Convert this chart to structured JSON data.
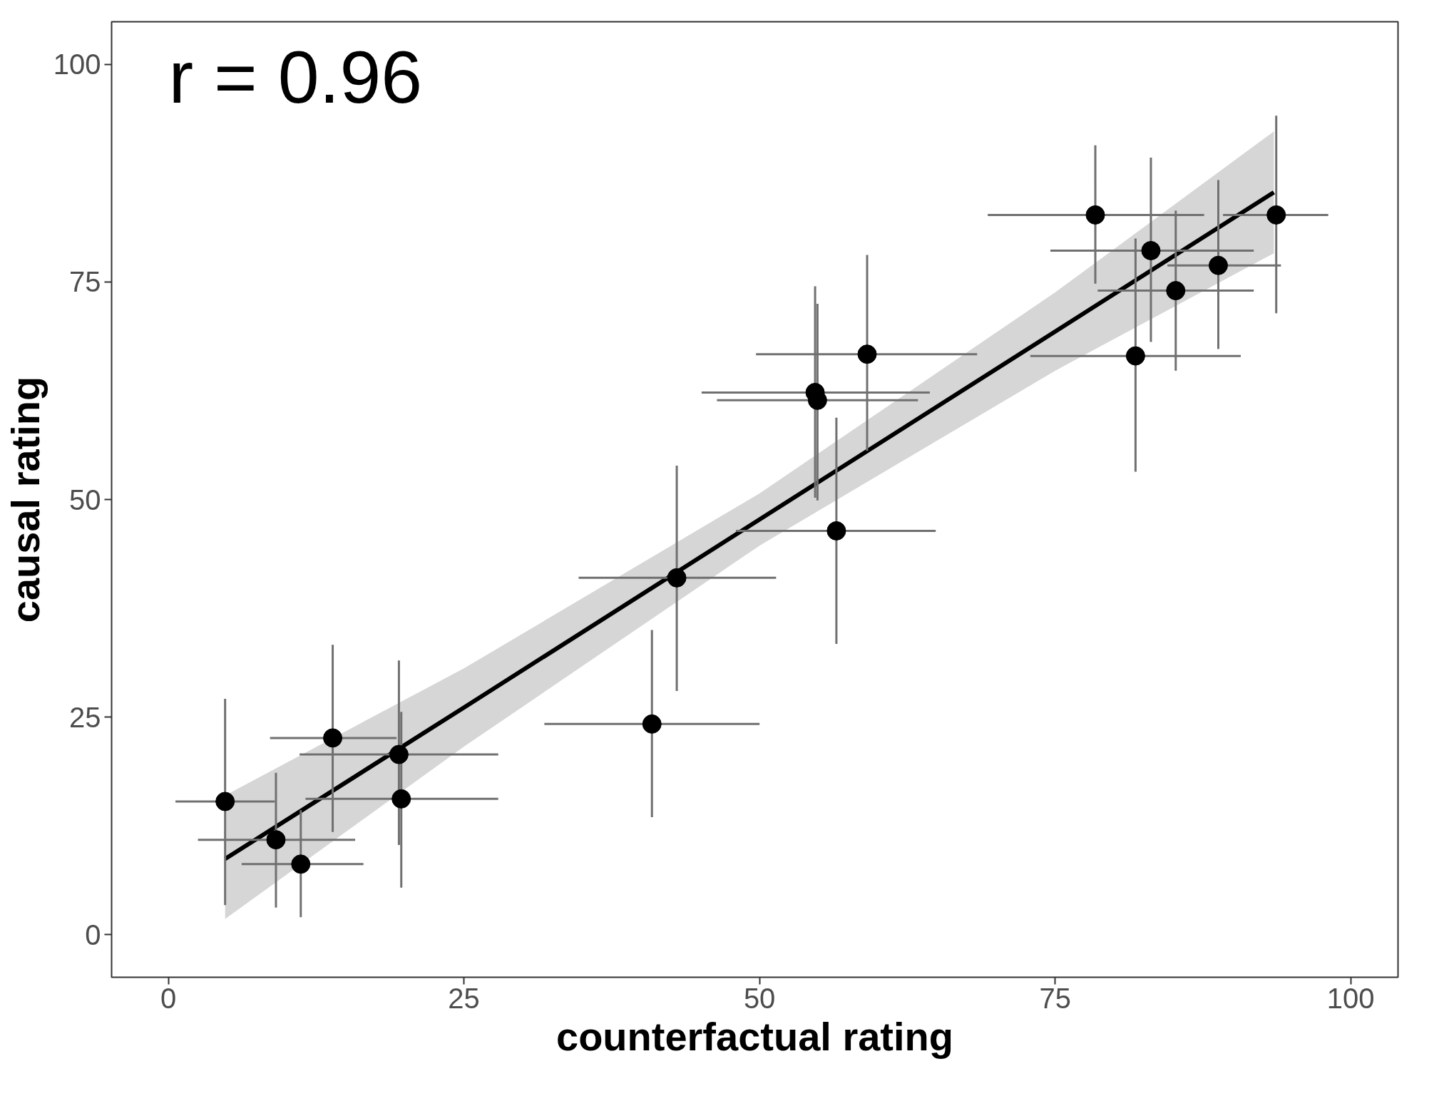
{
  "chart_data": {
    "type": "scatter",
    "xlabel": "counterfactual rating",
    "ylabel": "causal rating",
    "annotations": [
      "r = 0.96"
    ],
    "xlim": [
      -4.8,
      104.0
    ],
    "ylim": [
      -4.9,
      104.9
    ],
    "xticks": [
      0,
      25,
      50,
      75,
      100
    ],
    "yticks": [
      0,
      25,
      50,
      75,
      100
    ],
    "grid": false,
    "series": [
      {
        "marker": "circle",
        "color": "#000000",
        "x": [
          4.8,
          9.1,
          11.2,
          13.9,
          19.5,
          19.7,
          40.9,
          43.0,
          54.7,
          54.9,
          56.5,
          59.1,
          78.4,
          83.1,
          85.2,
          81.8,
          88.8,
          93.7
        ],
        "values": [
          15.3,
          10.9,
          8.1,
          22.6,
          20.7,
          15.6,
          24.2,
          41.0,
          62.3,
          61.4,
          46.4,
          66.7,
          82.7,
          78.6,
          74.0,
          66.5,
          76.9,
          82.7
        ],
        "errors": [
          [
            3.4,
            27.1
          ],
          [
            3.1,
            18.6
          ],
          [
            2.0,
            14.3
          ],
          [
            11.8,
            33.3
          ],
          [
            10.3,
            31.5
          ],
          [
            5.4,
            25.6
          ],
          [
            13.5,
            35.0
          ],
          [
            28.0,
            53.9
          ],
          [
            50.2,
            74.5
          ],
          [
            49.9,
            72.5
          ],
          [
            33.4,
            59.4
          ],
          [
            55.6,
            78.1
          ],
          [
            74.8,
            90.7
          ],
          [
            68.1,
            89.3
          ],
          [
            64.8,
            83.2
          ],
          [
            53.2,
            80.0
          ],
          [
            67.3,
            86.7
          ],
          [
            71.4,
            94.1
          ]
        ],
        "xerrors": [
          [
            0.6,
            9.0
          ],
          [
            2.5,
            15.8
          ],
          [
            6.2,
            16.5
          ],
          [
            8.6,
            19.3
          ],
          [
            11.1,
            27.9
          ],
          [
            11.6,
            27.9
          ],
          [
            31.8,
            50.0
          ],
          [
            34.7,
            51.4
          ],
          [
            45.1,
            64.4
          ],
          [
            46.4,
            63.4
          ],
          [
            48.0,
            64.9
          ],
          [
            49.7,
            68.4
          ],
          [
            69.3,
            87.6
          ],
          [
            74.6,
            91.8
          ],
          [
            78.6,
            91.8
          ],
          [
            72.9,
            90.7
          ],
          [
            84.5,
            94.1
          ],
          [
            89.2,
            98.1
          ]
        ]
      },
      {
        "type": "line",
        "marker": "none",
        "color": "#000000",
        "x": [
          4.8,
          25,
          50,
          75,
          93.5
        ],
        "values": [
          8.7,
          26.1,
          47.7,
          69.3,
          85.3
        ],
        "lower": [
          1.8,
          21.6,
          44.7,
          64.8,
          78.3
        ],
        "upper": [
          16.0,
          30.6,
          50.7,
          73.8,
          92.3
        ]
      }
    ]
  }
}
